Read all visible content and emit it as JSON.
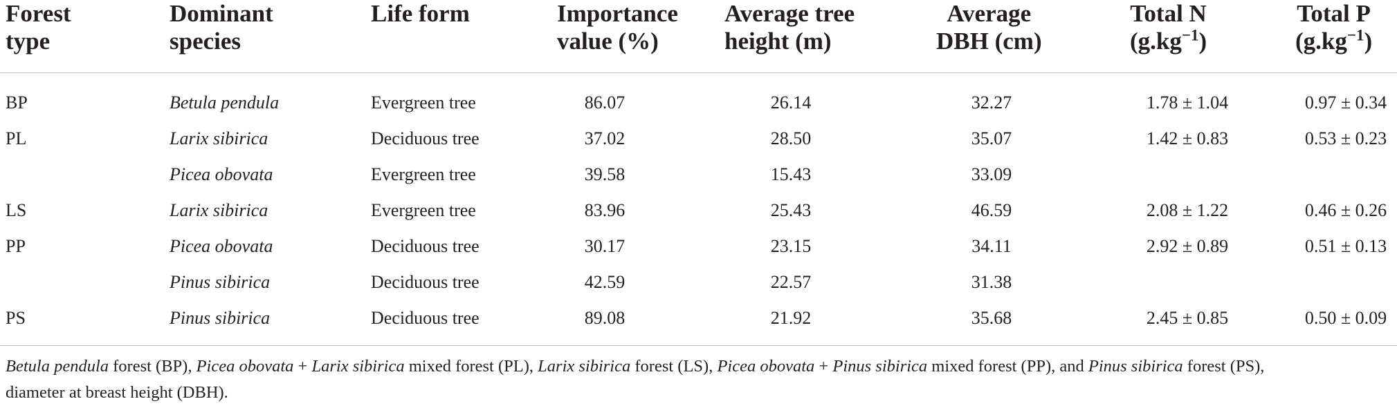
{
  "table": {
    "headers": {
      "forest_type": [
        "Forest",
        "type"
      ],
      "dominant_species": [
        "Dominant",
        "species"
      ],
      "life_form": [
        "Life form"
      ],
      "importance_value": [
        "Importance",
        "value (%)"
      ],
      "avg_height": [
        "Average tree",
        "height (m)"
      ],
      "avg_dbh": [
        "Average",
        "DBH (cm)"
      ],
      "total_n": {
        "line1": "Total N",
        "line2_prefix": "(g.kg",
        "sup": "−1",
        "line2_suffix": ")"
      },
      "total_p": {
        "line1": "Total P",
        "line2_prefix": "(g.kg",
        "sup": "−1",
        "line2_suffix": ")"
      }
    },
    "rows": [
      {
        "forest_type": "BP",
        "species": "Betula pendula",
        "life_form": "Evergreen tree",
        "importance": "86.07",
        "height": "26.14",
        "dbh": "32.27",
        "total_n": "1.78 ± 1.04",
        "total_p": "0.97 ± 0.34"
      },
      {
        "forest_type": "PL",
        "species": "Larix sibirica",
        "life_form": "Deciduous tree",
        "importance": "37.02",
        "height": "28.50",
        "dbh": "35.07",
        "total_n": "1.42 ± 0.83",
        "total_p": "0.53 ± 0.23"
      },
      {
        "forest_type": "",
        "species": "Picea obovata",
        "life_form": "Evergreen tree",
        "importance": "39.58",
        "height": "15.43",
        "dbh": "33.09",
        "total_n": "",
        "total_p": ""
      },
      {
        "forest_type": "LS",
        "species": "Larix sibirica",
        "life_form": "Evergreen tree",
        "importance": "83.96",
        "height": "25.43",
        "dbh": "46.59",
        "total_n": "2.08 ± 1.22",
        "total_p": "0.46 ± 0.26"
      },
      {
        "forest_type": "PP",
        "species": "Picea obovata",
        "life_form": "Deciduous tree",
        "importance": "30.17",
        "height": "23.15",
        "dbh": "34.11",
        "total_n": "2.92 ± 0.89",
        "total_p": "0.51 ± 0.13"
      },
      {
        "forest_type": "",
        "species": "Pinus sibirica",
        "life_form": "Deciduous tree",
        "importance": "42.59",
        "height": "22.57",
        "dbh": "31.38",
        "total_n": "",
        "total_p": ""
      },
      {
        "forest_type": "PS",
        "species": "Pinus sibirica",
        "life_form": "Deciduous tree",
        "importance": "89.08",
        "height": "21.92",
        "dbh": "35.68",
        "total_n": "2.45 ± 0.85",
        "total_p": "0.50 ± 0.09"
      }
    ]
  },
  "footnote": {
    "s1": "Betula pendula",
    "t1": " forest (BP), ",
    "s2": "Picea obovata",
    "t2": " + ",
    "s3": "Larix sibirica",
    "t3": " mixed forest (PL), ",
    "s4": "Larix sibirica",
    "t4": " forest (LS), ",
    "s5": "Picea obovata",
    "t5": " + ",
    "s6": "Pinus sibirica",
    "t6": " mixed forest (PP), and ",
    "s7": "Pinus sibirica",
    "t7": " forest (PS),",
    "line2": "diameter at breast height (DBH)."
  }
}
